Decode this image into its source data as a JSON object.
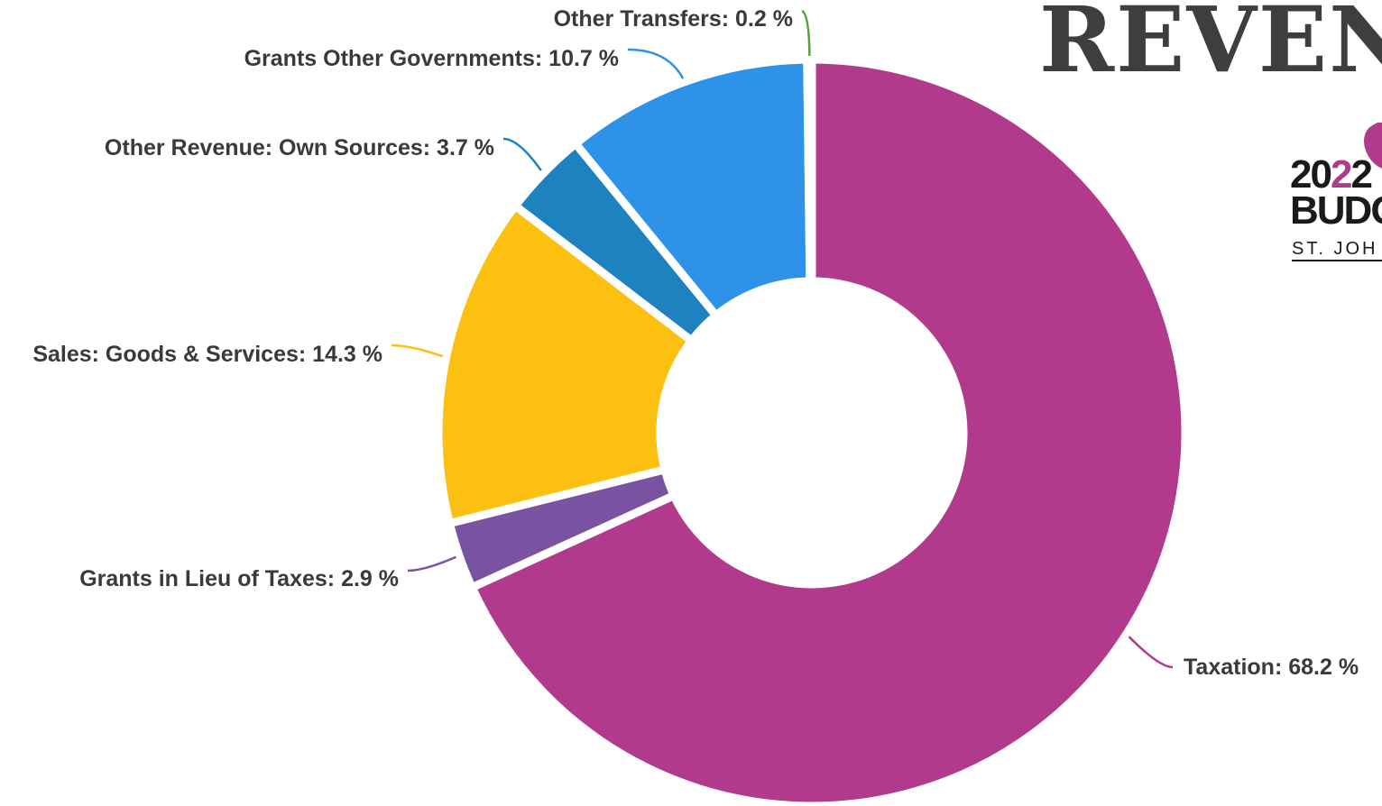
{
  "page": {
    "heading": "REVEN",
    "logo": {
      "year_prefix": "20",
      "year_accent": "2",
      "year_tail": "2",
      "word": "BUDG",
      "city": "ST. JOH"
    }
  },
  "chart_data": {
    "type": "pie",
    "donut": true,
    "title": "",
    "label_format": "{name}: {value} %",
    "slices": [
      {
        "name": "Taxation",
        "value": 68.2,
        "color": "#b23a8c"
      },
      {
        "name": "Grants in Lieu of Taxes",
        "value": 2.9,
        "color": "#7a52a2"
      },
      {
        "name": "Sales: Goods & Services",
        "value": 14.3,
        "color": "#fcc010"
      },
      {
        "name": "Other Revenue: Own Sources",
        "value": 3.7,
        "color": "#1e82bf"
      },
      {
        "name": "Grants Other Governments",
        "value": 10.7,
        "color": "#2e93e8"
      },
      {
        "name": "Other Transfers",
        "value": 0.2,
        "color": "#4fa33a"
      }
    ]
  }
}
